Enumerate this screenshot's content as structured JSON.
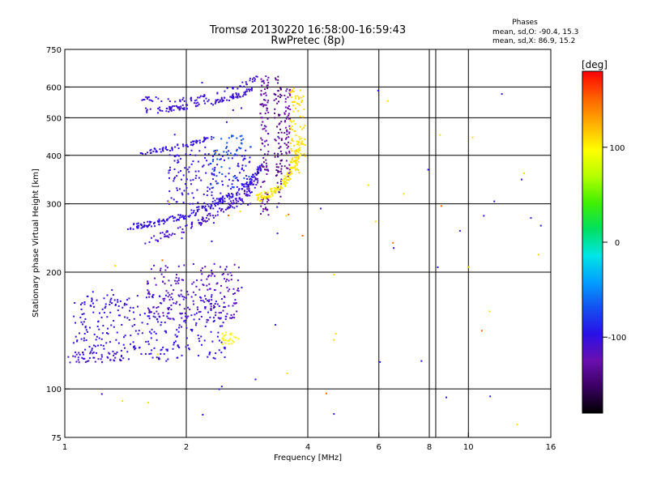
{
  "chart_data": {
    "type": "scatter",
    "title": "Tromsø 20130220 16:58:00-16:59:43",
    "subtitle": "RwPretec (8p)",
    "stats": {
      "heading": "Phases",
      "line1": "mean, sd,O: -90.4, 15.3",
      "line2": "mean, sd,X:  86.9, 15.2"
    },
    "xlabel": "Frequency [MHz]",
    "ylabel": "Stationary phase Virtual Height [km]",
    "xscale": "log",
    "yscale": "log",
    "xlim": [
      1,
      16
    ],
    "ylim": [
      75,
      750
    ],
    "xticks": [
      {
        "v": 1,
        "label": "1"
      },
      {
        "v": 2,
        "label": "2"
      },
      {
        "v": 4,
        "label": "4"
      },
      {
        "v": 6,
        "label": "6"
      },
      {
        "v": 8,
        "label": "8"
      },
      {
        "v": 10,
        "label": "10"
      },
      {
        "v": 16,
        "label": "16"
      }
    ],
    "yticks": [
      {
        "v": 75,
        "label": "75"
      },
      {
        "v": 100,
        "label": "100"
      },
      {
        "v": 200,
        "label": "200"
      },
      {
        "v": 300,
        "label": "300"
      },
      {
        "v": 400,
        "label": "400"
      },
      {
        "v": 500,
        "label": "500"
      },
      {
        "v": 600,
        "label": "600"
      },
      {
        "v": 750,
        "label": "750"
      }
    ],
    "xgrid": [
      1,
      2,
      4,
      6,
      8,
      8.3,
      10
    ],
    "ygrid": [
      100,
      200,
      300,
      400,
      500,
      600
    ],
    "grid": true,
    "colorbar": {
      "label": "[deg]",
      "range": [
        -180,
        180
      ],
      "ticks": [
        {
          "v": 100,
          "label": "100"
        },
        {
          "v": 0,
          "label": "0"
        },
        {
          "v": -100,
          "label": "-100"
        }
      ],
      "colors": [
        "#000000",
        "#3a0062",
        "#6a0fb0",
        "#2a10e6",
        "#1450f0",
        "#00a0ff",
        "#00e6e6",
        "#00e060",
        "#40f000",
        "#b4ff00",
        "#ffff00",
        "#ffb000",
        "#ff6000",
        "#ff0000"
      ]
    },
    "series": [
      {
        "label": "upper blue arc",
        "phase": -105,
        "trace": {
          "x": [
            1.6,
            1.8,
            2.0,
            2.3,
            2.6,
            2.9
          ],
          "y": [
            520,
            525,
            532,
            548,
            565,
            590
          ],
          "spread": 0.025,
          "n": 110
        }
      },
      {
        "label": "upper blue arc 2",
        "phase": -105,
        "trace": {
          "x": [
            1.55,
            1.8,
            2.1,
            2.4,
            2.8,
            3.0
          ],
          "y": [
            560,
            555,
            560,
            578,
            612,
            635
          ],
          "spread": 0.02,
          "n": 60
        }
      },
      {
        "label": "middle blue arc",
        "phase": -100,
        "trace": {
          "x": [
            1.55,
            1.7,
            1.9,
            2.1,
            2.3
          ],
          "y": [
            405,
            412,
            420,
            430,
            443
          ],
          "spread": 0.02,
          "n": 70
        }
      },
      {
        "label": "lower blue arc",
        "phase": -100,
        "trace": {
          "x": [
            1.45,
            1.7,
            2.0,
            2.3,
            2.6,
            2.9,
            3.1
          ],
          "y": [
            262,
            268,
            280,
            296,
            316,
            345,
            380
          ],
          "spread": 0.025,
          "n": 210
        }
      },
      {
        "label": "lower blue arc 2",
        "phase": -110,
        "trace": {
          "x": [
            1.6,
            1.9,
            2.2,
            2.5,
            2.8,
            3.0
          ],
          "y": [
            240,
            255,
            272,
            292,
            318,
            345
          ],
          "spread": 0.03,
          "n": 120
        }
      },
      {
        "label": "blue cloud upper-mid",
        "phase": -100,
        "box": {
          "x": [
            1.8,
            2.9
          ],
          "y": [
            290,
            420
          ],
          "n": 170
        }
      },
      {
        "label": "cyan streaks",
        "phase": -70,
        "box": {
          "x": [
            2.3,
            2.9
          ],
          "y": [
            330,
            450
          ],
          "n": 55
        }
      },
      {
        "label": "purple column a",
        "phase": -130,
        "box": {
          "x": [
            3.05,
            3.2
          ],
          "y": [
            280,
            640
          ],
          "n": 110
        }
      },
      {
        "label": "purple column b",
        "phase": -140,
        "box": {
          "x": [
            3.3,
            3.45
          ],
          "y": [
            300,
            640
          ],
          "n": 80
        }
      },
      {
        "label": "purple column c",
        "phase": -125,
        "box": {
          "x": [
            3.5,
            3.62
          ],
          "y": [
            350,
            600
          ],
          "n": 60
        }
      },
      {
        "label": "yellow arc",
        "phase": 105,
        "trace": {
          "x": [
            3.0,
            3.2,
            3.4,
            3.6,
            3.75,
            3.85
          ],
          "y": [
            310,
            318,
            330,
            355,
            390,
            440
          ],
          "spread": 0.03,
          "n": 140
        }
      },
      {
        "label": "yellow column",
        "phase": 110,
        "box": {
          "x": [
            3.6,
            3.95
          ],
          "y": [
            360,
            600
          ],
          "n": 80
        }
      },
      {
        "label": "E region cloud",
        "phase": -100,
        "box": {
          "x": [
            1.05,
            2.5
          ],
          "y": [
            118,
            175
          ],
          "n": 330
        }
      },
      {
        "label": "E region cloud upper",
        "phase": -115,
        "box": {
          "x": [
            1.6,
            2.7
          ],
          "y": [
            150,
            210
          ],
          "n": 200
        }
      },
      {
        "label": "E region cloud base",
        "phase": -110,
        "box": {
          "x": [
            1.02,
            1.4
          ],
          "y": [
            117,
            125
          ],
          "n": 40
        }
      },
      {
        "label": "yellow E patch",
        "phase": 100,
        "box": {
          "x": [
            2.45,
            2.7
          ],
          "y": [
            128,
            140
          ],
          "n": 25
        }
      },
      {
        "label": "scattered noise",
        "phase": -95,
        "box": {
          "x": [
            1,
            16
          ],
          "y": [
            80,
            650
          ],
          "n": 40
        }
      },
      {
        "label": "scattered yellow",
        "phase": 110,
        "box": {
          "x": [
            1.3,
            15
          ],
          "y": [
            80,
            640
          ],
          "n": 25
        }
      },
      {
        "label": "scattered orange",
        "phase": 150,
        "box": {
          "x": [
            1,
            12
          ],
          "y": [
            90,
            300
          ],
          "n": 8
        }
      }
    ]
  }
}
